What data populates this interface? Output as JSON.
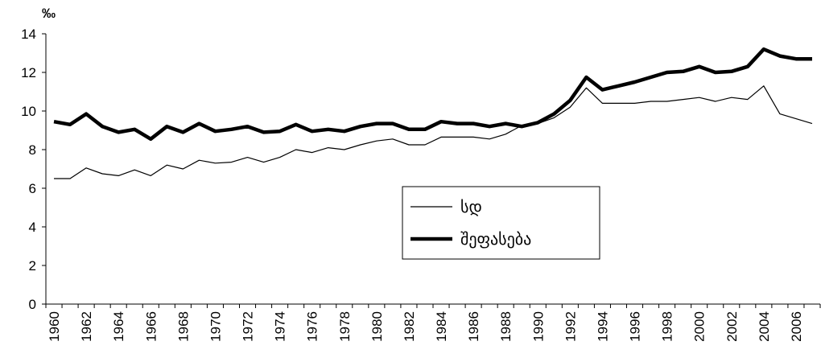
{
  "chart_data": {
    "type": "line",
    "y_label": "‰",
    "categories": [
      "1960",
      null,
      "1962",
      null,
      "1964",
      null,
      "1966",
      null,
      "1968",
      null,
      "1970",
      null,
      "1972",
      null,
      "1974",
      null,
      "1976",
      null,
      "1978",
      null,
      "1980",
      null,
      "1982",
      null,
      "1984",
      null,
      "1986",
      null,
      "1988",
      null,
      "1990",
      null,
      "1992",
      null,
      "1994",
      null,
      "1996",
      null,
      "1998",
      null,
      "2000",
      null,
      "2002",
      null,
      "2004",
      null,
      "2006",
      null
    ],
    "series": [
      {
        "name": "სდ",
        "color": "#000000",
        "width": 1.2,
        "values": [
          6.5,
          6.5,
          7.05,
          6.75,
          6.65,
          6.95,
          6.65,
          7.2,
          7.0,
          7.45,
          7.3,
          7.35,
          7.6,
          7.35,
          7.6,
          8.0,
          7.85,
          8.1,
          8.0,
          8.25,
          8.45,
          8.55,
          8.25,
          8.25,
          8.65,
          8.65,
          8.65,
          8.55,
          8.8,
          9.25,
          9.35,
          9.65,
          10.2,
          11.2,
          10.4,
          10.4,
          10.4,
          10.5,
          10.5,
          10.6,
          10.7,
          10.5,
          10.7,
          10.6,
          11.3,
          9.85,
          9.6,
          9.35
        ]
      },
      {
        "name": "შეფასება",
        "color": "#000000",
        "width": 4.5,
        "values": [
          9.45,
          9.3,
          9.85,
          9.2,
          8.9,
          9.05,
          8.55,
          9.2,
          8.9,
          9.35,
          8.95,
          9.05,
          9.2,
          8.9,
          8.95,
          9.3,
          8.95,
          9.05,
          8.95,
          9.2,
          9.35,
          9.35,
          9.05,
          9.05,
          9.45,
          9.35,
          9.35,
          9.2,
          9.35,
          9.2,
          9.4,
          9.85,
          10.55,
          11.75,
          11.1,
          11.3,
          11.5,
          11.75,
          12.0,
          12.05,
          12.3,
          12.0,
          12.05,
          12.3,
          13.2,
          12.85,
          12.7,
          12.7
        ]
      }
    ],
    "ylim": [
      0,
      14
    ],
    "yticks": [
      0,
      2,
      4,
      6,
      8,
      10,
      12,
      14
    ],
    "grid": false,
    "legend": "center"
  }
}
